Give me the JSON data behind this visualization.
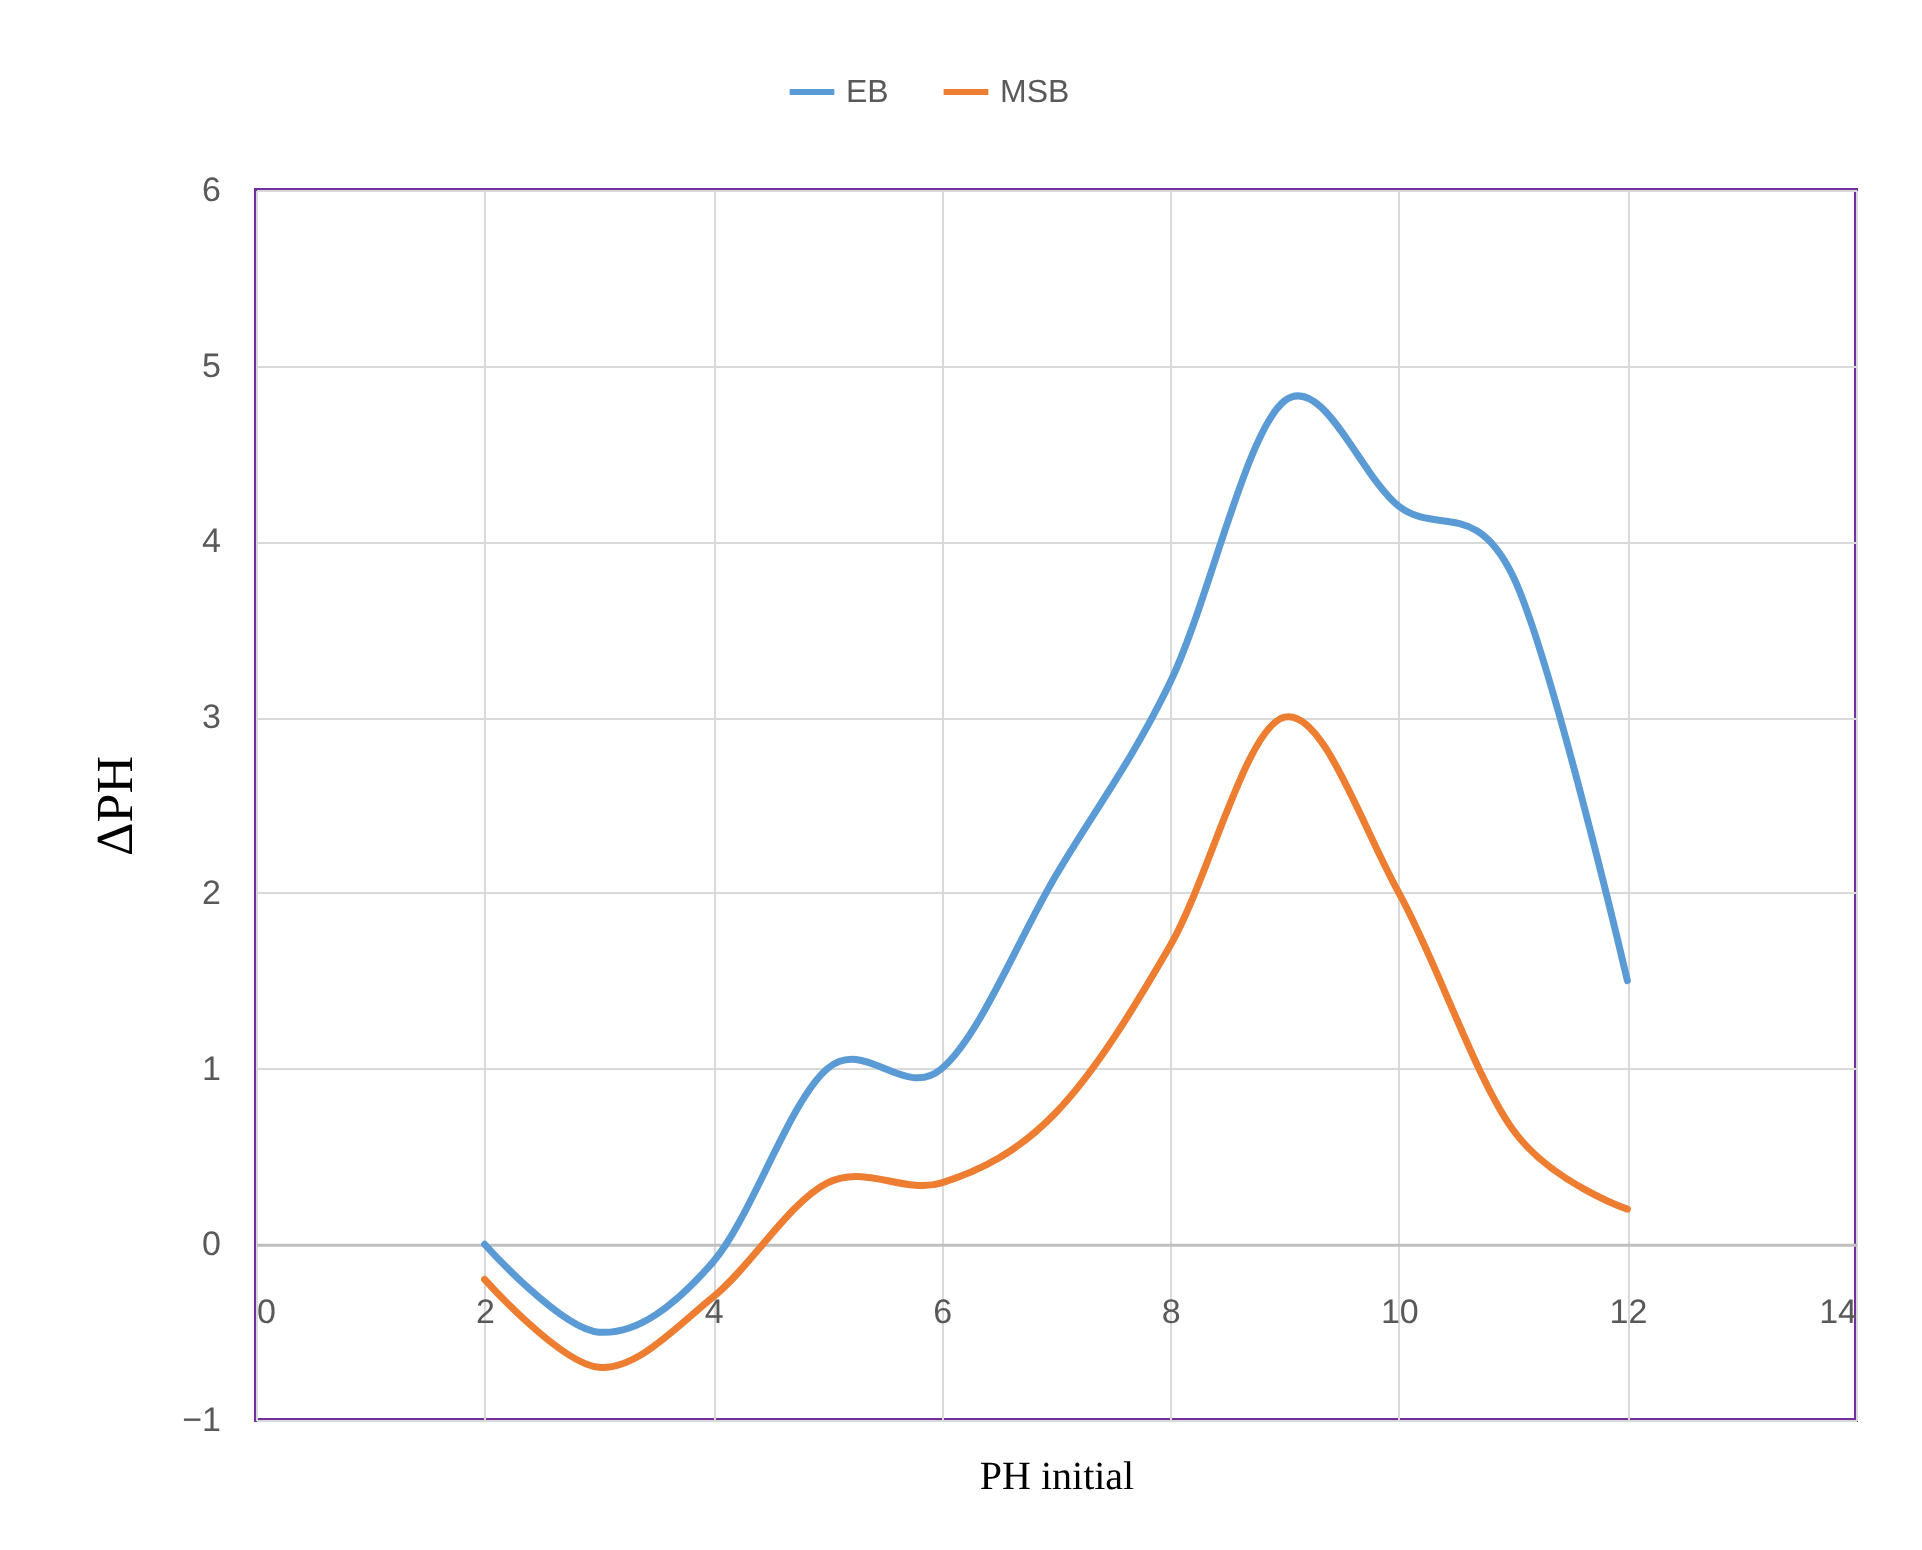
{
  "chart_data": {
    "type": "line",
    "xlabel": "PH initial",
    "ylabel": "ΔPH",
    "x": [
      2,
      3,
      4,
      5,
      6,
      7,
      8,
      9,
      10,
      11,
      12
    ],
    "series": [
      {
        "name": "EB",
        "color": "#5b9bd5",
        "values": [
          0,
          -0.5,
          -0.1,
          1.0,
          1.0,
          2.1,
          3.2,
          4.8,
          4.2,
          3.8,
          1.5
        ]
      },
      {
        "name": "MSB",
        "color": "#ed7d31",
        "values": [
          -0.2,
          -0.7,
          -0.3,
          0.35,
          0.35,
          0.75,
          1.7,
          3.0,
          2.0,
          0.65,
          0.2
        ]
      }
    ],
    "xlim": [
      0,
      14
    ],
    "xticks": [
      0,
      2,
      4,
      6,
      8,
      10,
      12,
      14
    ],
    "ylim": [
      -1,
      6
    ],
    "yticks": [
      -1,
      0,
      1,
      2,
      3,
      4,
      5,
      6
    ],
    "grid": true,
    "legend": "top",
    "marker": "none",
    "line_style": "solid"
  }
}
